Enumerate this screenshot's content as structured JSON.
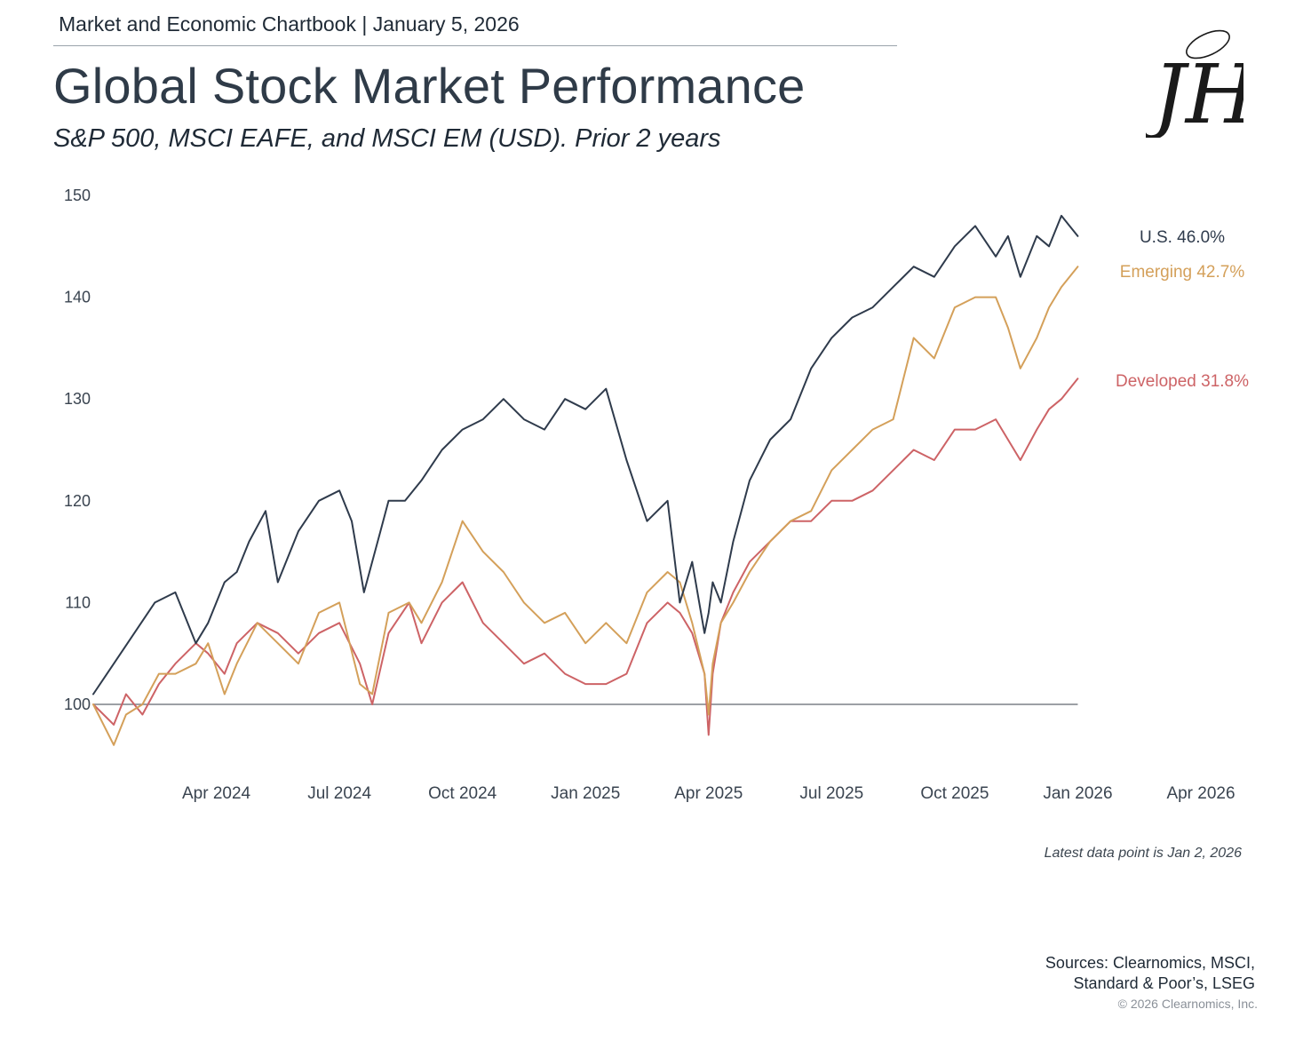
{
  "header": {
    "chartbook": "Market and Economic Chartbook | January 5, 2026",
    "title": "Global Stock Market Performance",
    "subtitle": "S&P 500, MSCI EAFE, and MSCI EM (USD). Prior 2 years"
  },
  "logo": {
    "icon": "jh-monogram-logo",
    "text": "JH"
  },
  "chart_data": {
    "type": "line",
    "title": "Global Stock Market Performance",
    "subtitle": "S&P 500, MSCI EAFE, and MSCI EM (USD). Prior 2 years",
    "xlabel": "",
    "ylabel": "",
    "x_domain_months": [
      0,
      27
    ],
    "x_ticks": [
      {
        "label": "Apr 2024",
        "month": 3
      },
      {
        "label": "Jul 2024",
        "month": 6
      },
      {
        "label": "Oct 2024",
        "month": 9
      },
      {
        "label": "Jan 2025",
        "month": 12
      },
      {
        "label": "Apr 2025",
        "month": 15
      },
      {
        "label": "Jul 2025",
        "month": 18
      },
      {
        "label": "Oct 2025",
        "month": 21
      },
      {
        "label": "Jan 2026",
        "month": 24
      },
      {
        "label": "Apr 2026",
        "month": 27
      }
    ],
    "ylim": [
      93,
      150
    ],
    "y_ticks": [
      100,
      110,
      120,
      130,
      140,
      150
    ],
    "baseline": 100,
    "grid": false,
    "series": [
      {
        "name": "U.S.",
        "end_label": "U.S. 46.0%",
        "color": "#2f3b4c",
        "x": [
          0,
          0.5,
          1,
          1.5,
          2,
          2.5,
          2.8,
          3.2,
          3.5,
          3.8,
          4.2,
          4.5,
          5,
          5.5,
          6,
          6.3,
          6.6,
          7,
          7.2,
          7.6,
          8,
          8.5,
          9,
          9.5,
          10,
          10.5,
          11,
          11.5,
          12,
          12.5,
          13,
          13.5,
          14,
          14.3,
          14.6,
          14.9,
          15.0,
          15.1,
          15.3,
          15.6,
          16,
          16.5,
          17,
          17.5,
          18,
          18.5,
          19,
          19.5,
          20,
          20.5,
          21,
          21.5,
          22,
          22.3,
          22.6,
          23,
          23.3,
          23.6,
          24.0
        ],
        "y": [
          101,
          104,
          107,
          110,
          111,
          106,
          108,
          112,
          113,
          116,
          119,
          112,
          117,
          120,
          121,
          118,
          111,
          117,
          120,
          120,
          122,
          125,
          127,
          128,
          130,
          128,
          127,
          130,
          129,
          131,
          124,
          118,
          120,
          110,
          114,
          107,
          109,
          112,
          110,
          116,
          122,
          126,
          128,
          133,
          136,
          138,
          139,
          141,
          143,
          142,
          145,
          147,
          144,
          146,
          142,
          146,
          145,
          148,
          146
        ]
      },
      {
        "name": "Emerging",
        "end_label": "Emerging 42.7%",
        "color": "#d4a05a",
        "x": [
          0,
          0.5,
          0.8,
          1.2,
          1.6,
          2,
          2.5,
          2.8,
          3.2,
          3.5,
          4,
          4.5,
          5,
          5.5,
          6,
          6.5,
          6.8,
          7.2,
          7.7,
          8,
          8.5,
          9,
          9.5,
          10,
          10.5,
          11,
          11.5,
          12,
          12.5,
          13,
          13.5,
          14,
          14.3,
          14.6,
          14.9,
          15.0,
          15.1,
          15.3,
          15.6,
          16,
          16.5,
          17,
          17.5,
          18,
          18.5,
          19,
          19.5,
          20,
          20.5,
          21,
          21.5,
          22,
          22.3,
          22.6,
          23,
          23.3,
          23.6,
          24.0
        ],
        "y": [
          100,
          96,
          99,
          100,
          103,
          103,
          104,
          106,
          101,
          104,
          108,
          106,
          104,
          109,
          110,
          102,
          101,
          109,
          110,
          108,
          112,
          118,
          115,
          113,
          110,
          108,
          109,
          106,
          108,
          106,
          111,
          113,
          112,
          108,
          103,
          99,
          104,
          108,
          110,
          113,
          116,
          118,
          119,
          123,
          125,
          127,
          128,
          136,
          134,
          139,
          140,
          140,
          137,
          133,
          136,
          139,
          141,
          143
        ]
      },
      {
        "name": "Developed",
        "end_label": "Developed 31.8%",
        "color": "#cd6366",
        "x": [
          0,
          0.5,
          0.8,
          1.2,
          1.6,
          2,
          2.5,
          2.8,
          3.2,
          3.5,
          4,
          4.5,
          5,
          5.5,
          6,
          6.5,
          6.8,
          7.2,
          7.7,
          8,
          8.5,
          9,
          9.5,
          10,
          10.5,
          11,
          11.5,
          12,
          12.5,
          13,
          13.5,
          14,
          14.3,
          14.6,
          14.9,
          15.0,
          15.1,
          15.3,
          15.6,
          16,
          16.5,
          17,
          17.5,
          18,
          18.5,
          19,
          19.5,
          20,
          20.5,
          21,
          21.5,
          22,
          22.3,
          22.6,
          23,
          23.3,
          23.6,
          24.0
        ],
        "y": [
          100,
          98,
          101,
          99,
          102,
          104,
          106,
          105,
          103,
          106,
          108,
          107,
          105,
          107,
          108,
          104,
          100,
          107,
          110,
          106,
          110,
          112,
          108,
          106,
          104,
          105,
          103,
          102,
          102,
          103,
          108,
          110,
          109,
          107,
          103,
          97,
          103,
          108,
          111,
          114,
          116,
          118,
          118,
          120,
          120,
          121,
          123,
          125,
          124,
          127,
          127,
          128,
          126,
          124,
          127,
          129,
          130,
          132
        ]
      }
    ]
  },
  "footnote": {
    "latest": "Latest data point is Jan 2, 2026",
    "sources_line1": "Sources: Clearnomics, MSCI,",
    "sources_line2": "Standard & Poor’s, LSEG",
    "copyright": "© 2026 Clearnomics, Inc."
  }
}
